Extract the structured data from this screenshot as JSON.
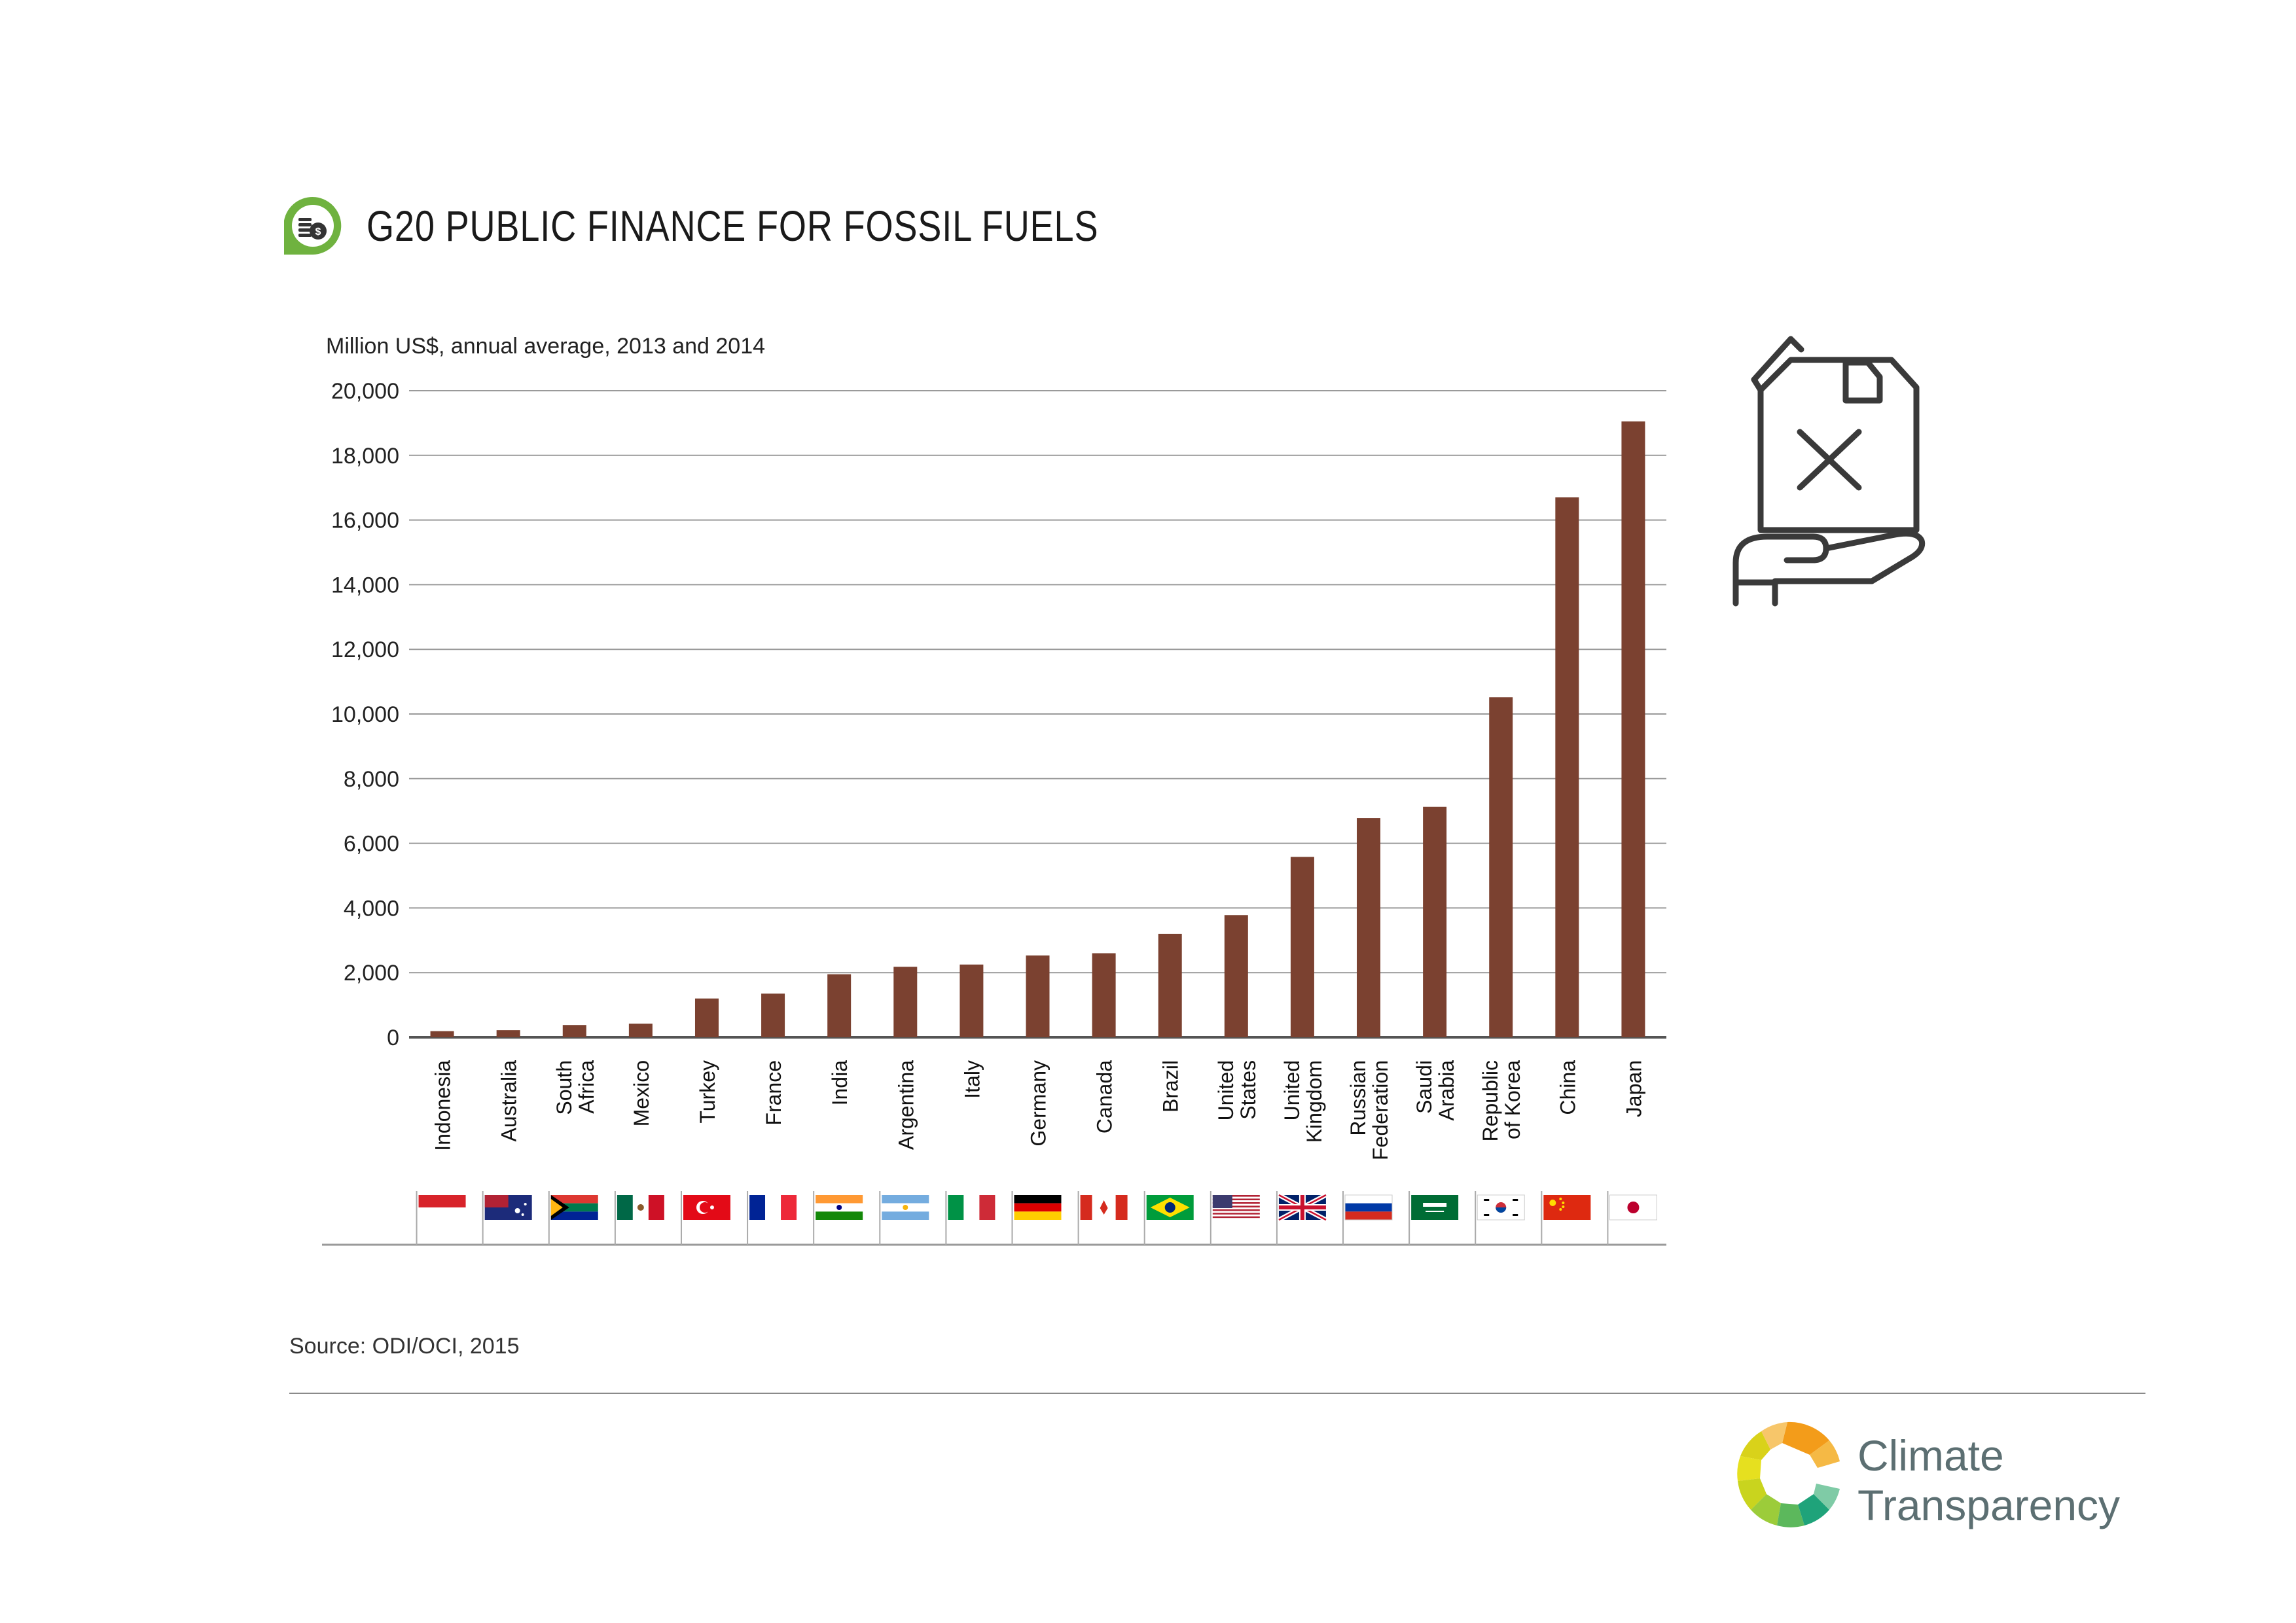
{
  "header": {
    "title": "G20 PUBLIC FINANCE FOR FOSSIL FUELS",
    "icon": "coins-dollar-icon"
  },
  "colors": {
    "bar": "#7b4130",
    "grid": "#9a9a9a",
    "axis": "#555555",
    "icon_green": "#6fb23f",
    "brand_text": "#5c6f72"
  },
  "chart_data": {
    "type": "bar",
    "title": "G20 PUBLIC FINANCE FOR FOSSIL FUELS",
    "ylabel": "Million US$, annual average, 2013 and 2014",
    "xlabel": "",
    "ylim": [
      0,
      20000
    ],
    "yticks": [
      0,
      2000,
      4000,
      6000,
      8000,
      10000,
      12000,
      14000,
      16000,
      18000,
      20000
    ],
    "ytick_labels": [
      "0",
      "2,000",
      "4,000",
      "6,000",
      "8,000",
      "10,000",
      "12,000",
      "14,000",
      "16,000",
      "18,000",
      "20,000"
    ],
    "grid": true,
    "categories": [
      "Indonesia",
      "Australia",
      "South Africa",
      "Mexico",
      "Turkey",
      "France",
      "India",
      "Argentina",
      "Italy",
      "Germany",
      "Canada",
      "Brazil",
      "United States",
      "United Kingdom",
      "Russian Federation",
      "Saudi Arabia",
      "Republic of Korea",
      "China",
      "Japan"
    ],
    "category_lines": [
      [
        "Indonesia"
      ],
      [
        "Australia"
      ],
      [
        "South",
        "Africa"
      ],
      [
        "Mexico"
      ],
      [
        "Turkey"
      ],
      [
        "France"
      ],
      [
        "India"
      ],
      [
        "Argentina"
      ],
      [
        "Italy"
      ],
      [
        "Germany"
      ],
      [
        "Canada"
      ],
      [
        "Brazil"
      ],
      [
        "United",
        "States"
      ],
      [
        "United",
        "Kingdom"
      ],
      [
        "Russian",
        "Federation"
      ],
      [
        "Saudi",
        "Arabia"
      ],
      [
        "Republic",
        "of Korea"
      ],
      [
        "China"
      ],
      [
        "Japan"
      ]
    ],
    "flags": [
      "indonesia-flag-icon",
      "australia-flag-icon",
      "south-africa-flag-icon",
      "mexico-flag-icon",
      "turkey-flag-icon",
      "france-flag-icon",
      "india-flag-icon",
      "argentina-flag-icon",
      "italy-flag-icon",
      "germany-flag-icon",
      "canada-flag-icon",
      "brazil-flag-icon",
      "united-states-flag-icon",
      "united-kingdom-flag-icon",
      "russia-flag-icon",
      "saudi-arabia-flag-icon",
      "south-korea-flag-icon",
      "china-flag-icon",
      "japan-flag-icon"
    ],
    "values": [
      190,
      220,
      380,
      420,
      1200,
      1350,
      1950,
      2180,
      2250,
      2530,
      2600,
      3200,
      3780,
      5580,
      6780,
      7130,
      10520,
      16700,
      19050
    ]
  },
  "decor": {
    "jerrycan": "fuel-can-in-hand-icon"
  },
  "footer": {
    "source": "Source: ODI/OCI, 2015",
    "brand_line1": "Climate",
    "brand_line2": "Transparency",
    "logo": "climate-transparency-logo-icon"
  }
}
